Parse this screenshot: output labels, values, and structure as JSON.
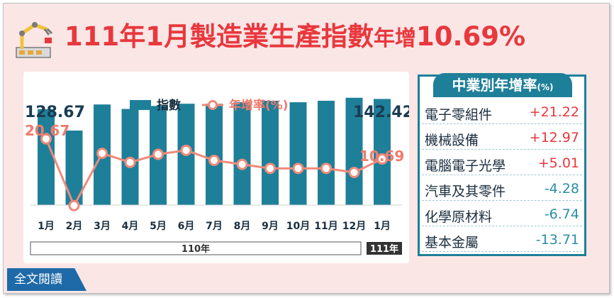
{
  "title": {
    "prefix": "111年1月",
    "main": "製造業生產指數",
    "suffix_small": "年增",
    "value": "10.69%"
  },
  "legend": {
    "index_label": "指數",
    "rate_label": "年增率(%)"
  },
  "colors": {
    "bar": "#1e7f99",
    "line": "#f08a7a",
    "marker_fill": "#ffffff",
    "rate_text": "#f07b6c",
    "index_text": "#1a3b52",
    "accent": "#e8383d"
  },
  "chart_data": {
    "type": "bar+line",
    "categories": [
      "1月",
      "2月",
      "3月",
      "4月",
      "5月",
      "6月",
      "7月",
      "8月",
      "9月",
      "10月",
      "11月",
      "12月",
      "1月"
    ],
    "series": [
      {
        "name": "指數",
        "type": "bar",
        "values": [
          128.67,
          100,
          135,
          129,
          133,
          136,
          136,
          138,
          140,
          138,
          140,
          144,
          142.42
        ]
      },
      {
        "name": "年增率(%)",
        "type": "line",
        "values": [
          20.67,
          -12.5,
          13.5,
          9,
          13,
          15,
          10,
          8,
          6,
          6,
          6,
          4,
          10.69
        ]
      }
    ],
    "bar_ylim": [
      0,
      160
    ],
    "line_ylim": [
      -20,
      40
    ],
    "data_labels": {
      "bar_first": "128.67",
      "bar_last": "142.42",
      "line_first": "20.67",
      "line_last": "10.69"
    },
    "period_labels": [
      "110年",
      "111年"
    ]
  },
  "side_panel": {
    "title": "中業別年增率",
    "unit": "(%)",
    "rows": [
      {
        "name": "電子零組件",
        "value": "+21.22",
        "sign": "pos"
      },
      {
        "name": "機械設備",
        "value": "+12.97",
        "sign": "pos"
      },
      {
        "name": "電腦電子光學",
        "value": "+5.01",
        "sign": "pos"
      },
      {
        "name": "汽車及其零件",
        "value": "-4.28",
        "sign": "neg"
      },
      {
        "name": "化學原材料",
        "value": "-6.74",
        "sign": "neg"
      },
      {
        "name": "基本金屬",
        "value": "-13.71",
        "sign": "neg"
      }
    ]
  },
  "read_all": "全文閱讀",
  "icons": {
    "factory": "factory-robot-arm-icon"
  }
}
